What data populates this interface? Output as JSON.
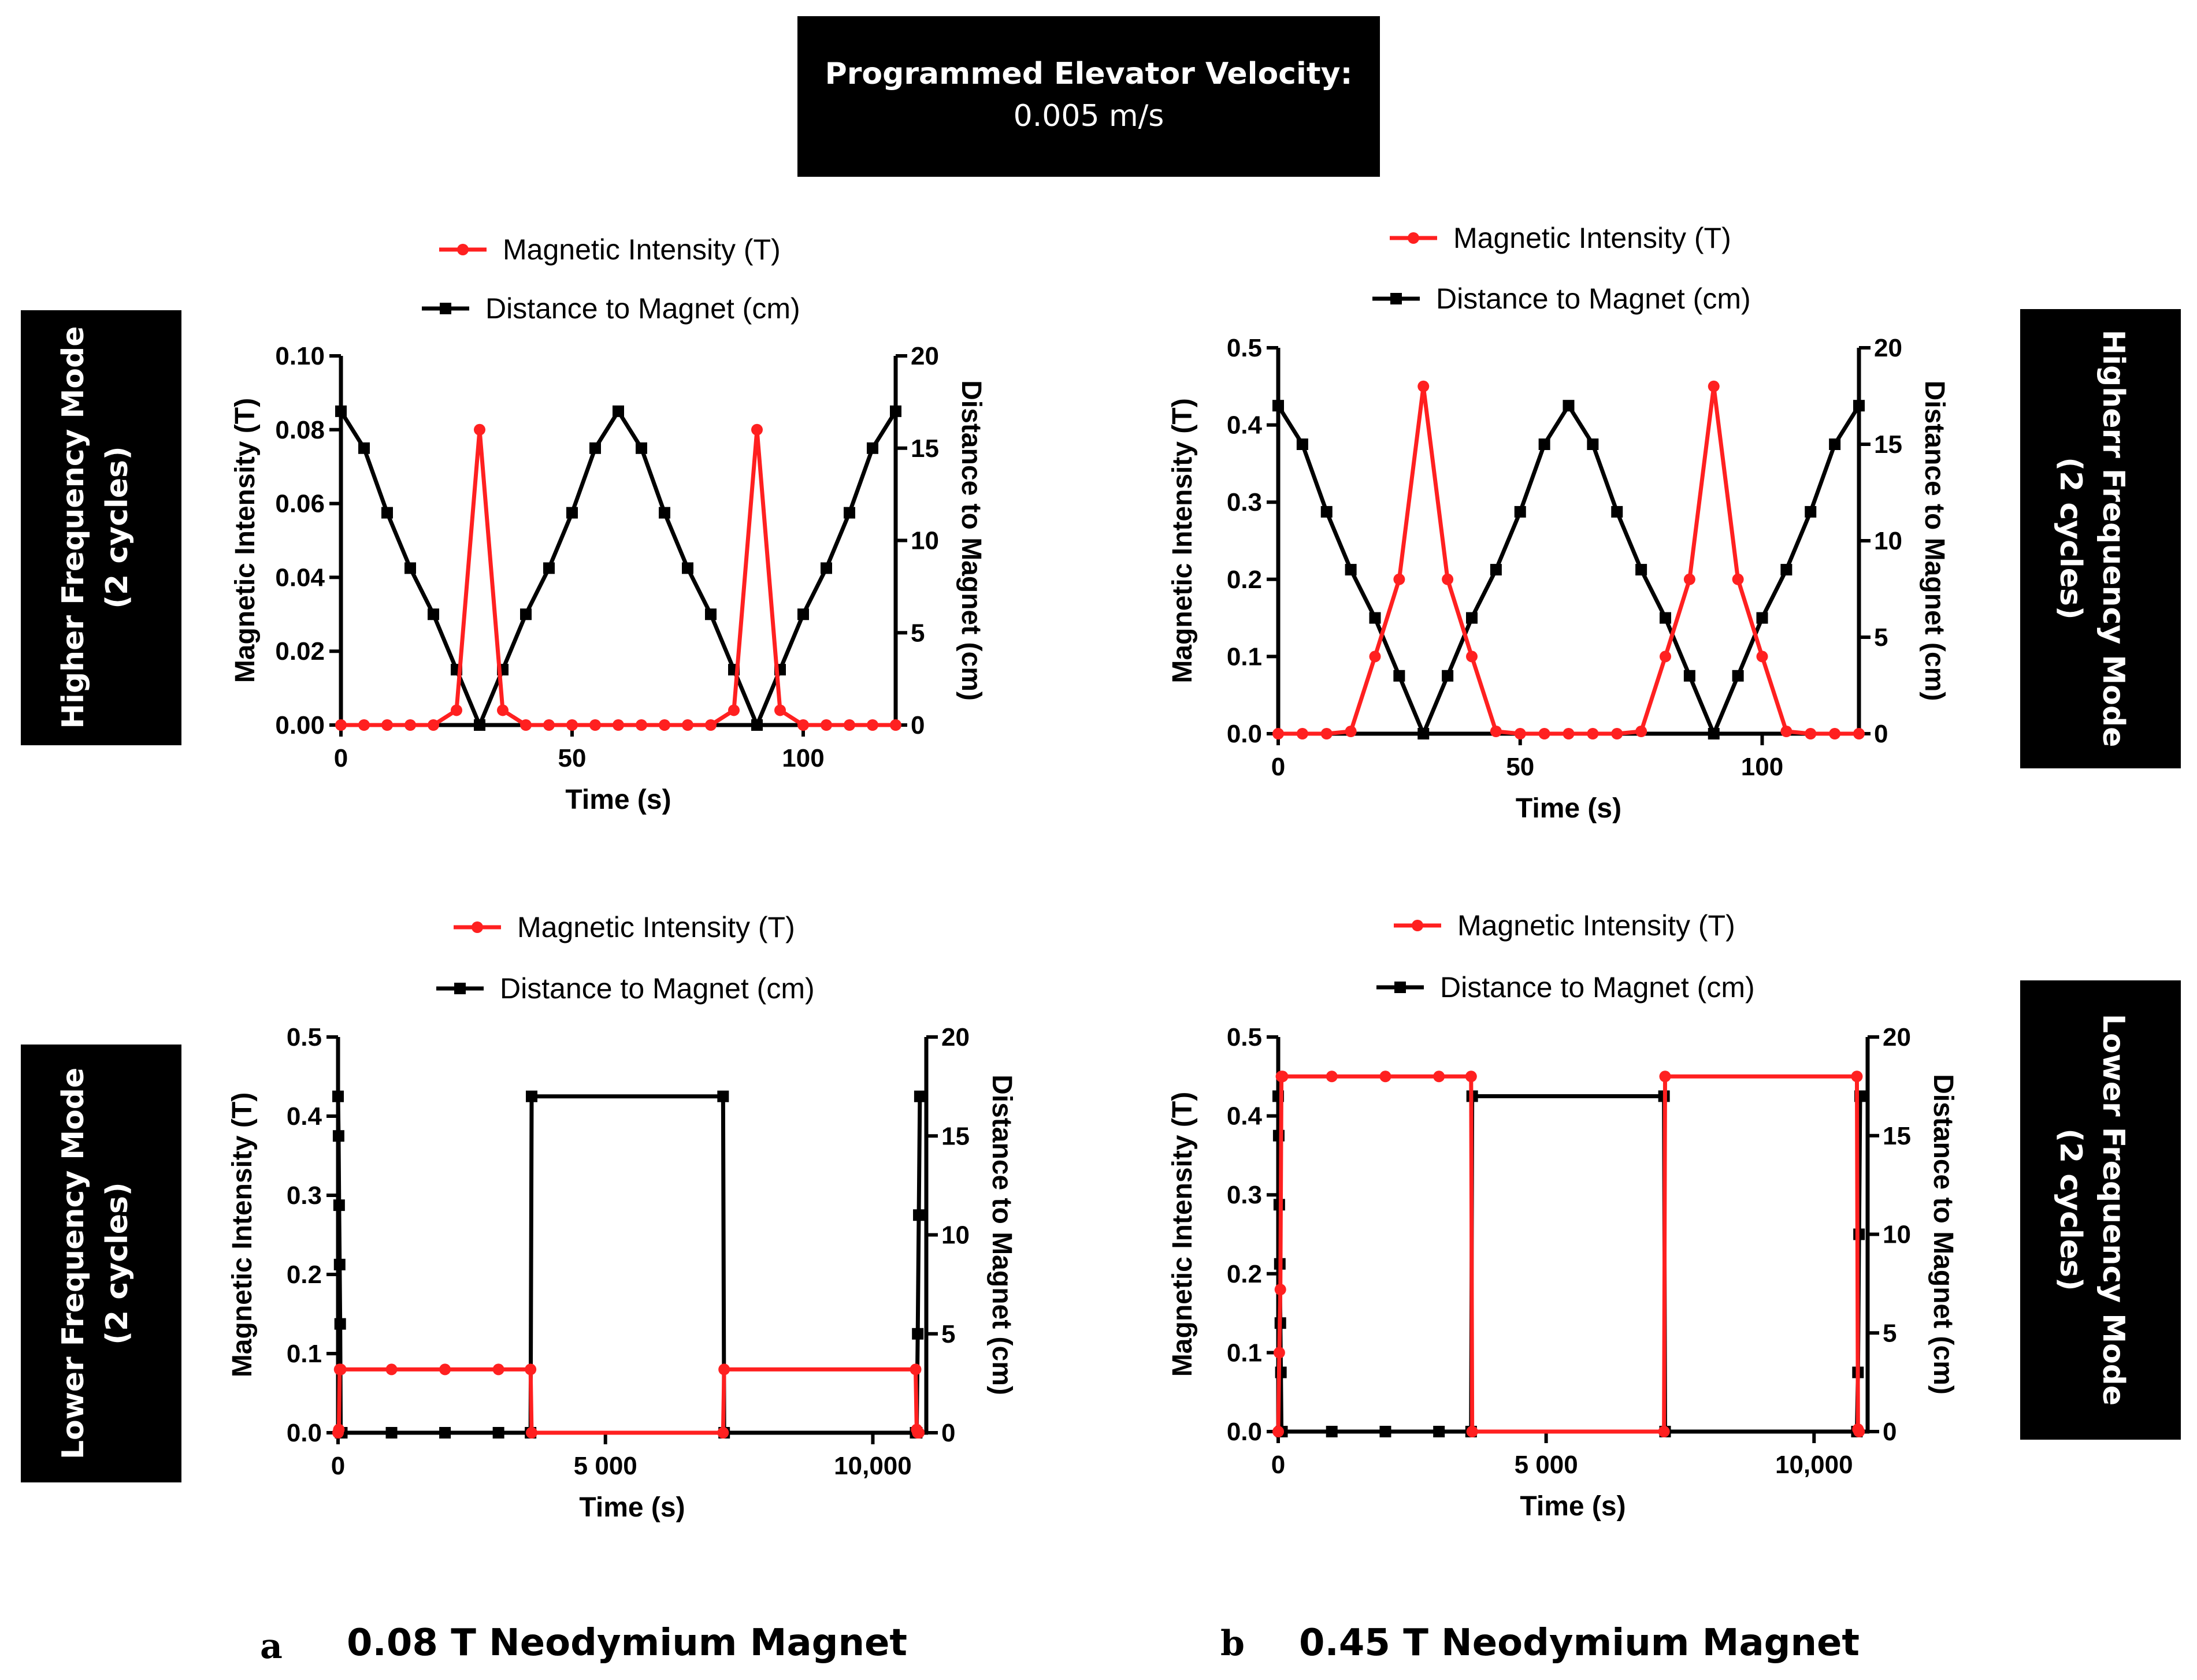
{
  "header": {
    "title_bold": "Programmed Elevator Velocity:",
    "title_value": "0.005 m/s"
  },
  "side_labels": {
    "left_top": [
      "Higher Frequency Mode",
      "(2 cycles)"
    ],
    "left_bottom": [
      "Lower Frequency Mode",
      "(2 cycles)"
    ],
    "right_top": [
      "Higherr Frequency Mode",
      "(2 cycles)"
    ],
    "right_bottom": [
      "Lower Frequency Mode",
      "(2 cycles)"
    ]
  },
  "captions": {
    "a_letter": "a",
    "a_text": "0.08 T Neodymium Magnet",
    "b_letter": "b",
    "b_text": "0.45 T Neodymium Magnet"
  },
  "colors": {
    "magnetic": "#ff2020",
    "distance": "#000000"
  },
  "chart_data": [
    {
      "id": "a-high",
      "type": "line",
      "xlabel": "Time (s)",
      "ylabel": "Magnetic Intensity (T)",
      "y2label": "Distance to Magnet (cm)",
      "xlim": [
        0,
        120
      ],
      "ylim": [
        0,
        0.1
      ],
      "y2lim": [
        0,
        20
      ],
      "xticks": [
        0,
        50,
        100
      ],
      "xtick_labels": [
        "0",
        "50",
        "100"
      ],
      "yticks": [
        0,
        0.02,
        0.04,
        0.06,
        0.08,
        0.1
      ],
      "ytick_labels": [
        "0.00",
        "0.02",
        "0.04",
        "0.06",
        "0.08",
        "0.10"
      ],
      "y2ticks": [
        0,
        5,
        10,
        15,
        20
      ],
      "y2tick_labels": [
        "0",
        "5",
        "10",
        "15",
        "20"
      ],
      "legend_position": "top-center",
      "series": [
        {
          "name": "Magnetic Intensity (T)",
          "axis": "left",
          "marker": "circle",
          "color": "#ff2020",
          "x": [
            0,
            5,
            10,
            15,
            20,
            25,
            30,
            35,
            40,
            45,
            50,
            55,
            60,
            65,
            70,
            75,
            80,
            85,
            90,
            95,
            100,
            105,
            110,
            115,
            120
          ],
          "y": [
            0,
            0,
            0,
            0,
            0,
            0.004,
            0.08,
            0.004,
            0,
            0,
            0,
            0,
            0,
            0,
            0,
            0,
            0,
            0.004,
            0.08,
            0.004,
            0,
            0,
            0,
            0,
            0
          ]
        },
        {
          "name": "Distance to Magnet (cm)",
          "axis": "right",
          "marker": "square",
          "color": "#000000",
          "x": [
            0,
            5,
            10,
            15,
            20,
            25,
            30,
            35,
            40,
            45,
            50,
            55,
            60,
            65,
            70,
            75,
            80,
            85,
            90,
            95,
            100,
            105,
            110,
            115,
            120
          ],
          "y": [
            17,
            15,
            11.5,
            8.5,
            6,
            3,
            0,
            3,
            6,
            8.5,
            11.5,
            15,
            17,
            15,
            11.5,
            8.5,
            6,
            3,
            0,
            3,
            6,
            8.5,
            11.5,
            15,
            17
          ]
        }
      ]
    },
    {
      "id": "b-high",
      "type": "line",
      "xlabel": "Time (s)",
      "ylabel": "Magnetic Intensity (T)",
      "y2label": "Distance to Magnet (cm)",
      "xlim": [
        0,
        120
      ],
      "ylim": [
        0,
        0.5
      ],
      "y2lim": [
        0,
        20
      ],
      "xticks": [
        0,
        50,
        100
      ],
      "xtick_labels": [
        "0",
        "50",
        "100"
      ],
      "yticks": [
        0,
        0.1,
        0.2,
        0.3,
        0.4,
        0.5
      ],
      "ytick_labels": [
        "0.0",
        "0.1",
        "0.2",
        "0.3",
        "0.4",
        "0.5"
      ],
      "y2ticks": [
        0,
        5,
        10,
        15,
        20
      ],
      "y2tick_labels": [
        "0",
        "5",
        "10",
        "15",
        "20"
      ],
      "legend_position": "top-center",
      "series": [
        {
          "name": "Magnetic Intensity (T)",
          "axis": "left",
          "marker": "circle",
          "color": "#ff2020",
          "x": [
            0,
            5,
            10,
            15,
            20,
            25,
            30,
            35,
            40,
            45,
            50,
            55,
            60,
            65,
            70,
            75,
            80,
            85,
            90,
            95,
            100,
            105,
            110,
            115,
            120
          ],
          "y": [
            0,
            0,
            0,
            0.003,
            0.1,
            0.2,
            0.45,
            0.2,
            0.1,
            0.003,
            0,
            0,
            0,
            0,
            0,
            0.003,
            0.1,
            0.2,
            0.45,
            0.2,
            0.1,
            0.003,
            0,
            0,
            0
          ]
        },
        {
          "name": "Distance to Magnet (cm)",
          "axis": "right",
          "marker": "square",
          "color": "#000000",
          "x": [
            0,
            5,
            10,
            15,
            20,
            25,
            30,
            35,
            40,
            45,
            50,
            55,
            60,
            65,
            70,
            75,
            80,
            85,
            90,
            95,
            100,
            105,
            110,
            115,
            120
          ],
          "y": [
            17,
            15,
            11.5,
            8.5,
            6,
            3,
            0,
            3,
            6,
            8.5,
            11.5,
            15,
            17,
            15,
            11.5,
            8.5,
            6,
            3,
            0,
            3,
            6,
            8.5,
            11.5,
            15,
            17
          ]
        }
      ]
    },
    {
      "id": "a-low",
      "type": "line",
      "xlabel": "Time (s)",
      "ylabel": "Magnetic Intensity (T)",
      "y2label": "Distance to Magnet (cm)",
      "xlim": [
        0,
        11000
      ],
      "ylim": [
        0,
        0.5
      ],
      "y2lim": [
        0,
        20
      ],
      "xticks": [
        0,
        5000,
        10000
      ],
      "xtick_labels": [
        "0",
        "5 000",
        "10,000"
      ],
      "yticks": [
        0,
        0.1,
        0.2,
        0.3,
        0.4,
        0.5
      ],
      "ytick_labels": [
        "0.0",
        "0.1",
        "0.2",
        "0.3",
        "0.4",
        "0.5"
      ],
      "y2ticks": [
        0,
        5,
        10,
        15,
        20
      ],
      "y2tick_labels": [
        "0",
        "5",
        "10",
        "15",
        "20"
      ],
      "legend_position": "top-center",
      "series": [
        {
          "name": "Magnetic Intensity (T)",
          "axis": "left",
          "marker": "circle",
          "color": "#ff2020",
          "x": [
            0,
            15,
            30,
            50,
            1000,
            2000,
            3000,
            3600,
            3620,
            7200,
            7220,
            10800,
            10820,
            10840,
            10860
          ],
          "y": [
            0,
            0.004,
            0.08,
            0.08,
            0.08,
            0.08,
            0.08,
            0.08,
            0,
            0,
            0.08,
            0.08,
            0.004,
            0,
            0
          ]
        },
        {
          "name": "Distance to Magnet (cm)",
          "axis": "right",
          "marker": "square",
          "color": "#000000",
          "x": [
            0,
            10,
            20,
            30,
            40,
            50,
            60,
            70,
            1000,
            2000,
            3000,
            3600,
            3620,
            7200,
            7220,
            10800,
            10820,
            10840,
            10860,
            10880
          ],
          "y": [
            17,
            15,
            11.5,
            8.5,
            5.5,
            0,
            0,
            0,
            0,
            0,
            0,
            0,
            17,
            17,
            0,
            0,
            0,
            5,
            11,
            17
          ]
        }
      ]
    },
    {
      "id": "b-low",
      "type": "line",
      "xlabel": "Time (s)",
      "ylabel": "Magnetic Intensity (T)",
      "y2label": "Distance to Magnet (cm)",
      "xlim": [
        0,
        11000
      ],
      "ylim": [
        0,
        0.5
      ],
      "y2lim": [
        0,
        20
      ],
      "xticks": [
        0,
        5000,
        10000
      ],
      "xtick_labels": [
        "0",
        "5 000",
        "10,000"
      ],
      "yticks": [
        0,
        0.1,
        0.2,
        0.3,
        0.4,
        0.5
      ],
      "ytick_labels": [
        "0.0",
        "0.1",
        "0.2",
        "0.3",
        "0.4",
        "0.5"
      ],
      "y2ticks": [
        0,
        5,
        10,
        15,
        20
      ],
      "y2tick_labels": [
        "0",
        "5",
        "10",
        "15",
        "20"
      ],
      "legend_position": "top-center",
      "series": [
        {
          "name": "Magnetic Intensity (T)",
          "axis": "left",
          "marker": "circle",
          "color": "#ff2020",
          "x": [
            0,
            20,
            40,
            60,
            80,
            1000,
            2000,
            3000,
            3600,
            3620,
            7200,
            7220,
            10800,
            10820,
            10840
          ],
          "y": [
            0,
            0.1,
            0.18,
            0.45,
            0.45,
            0.45,
            0.45,
            0.45,
            0.45,
            0,
            0,
            0.45,
            0.45,
            0.003,
            0
          ]
        },
        {
          "name": "Distance to Magnet (cm)",
          "axis": "right",
          "marker": "square",
          "color": "#000000",
          "x": [
            0,
            10,
            20,
            30,
            40,
            50,
            60,
            70,
            1000,
            2000,
            3000,
            3600,
            3620,
            7200,
            7220,
            10800,
            10820,
            10840,
            10860
          ],
          "y": [
            17,
            15,
            11.5,
            8.5,
            5.5,
            3,
            0,
            0,
            0,
            0,
            0,
            0,
            17,
            17,
            0,
            0,
            3,
            10,
            17
          ]
        }
      ]
    }
  ]
}
